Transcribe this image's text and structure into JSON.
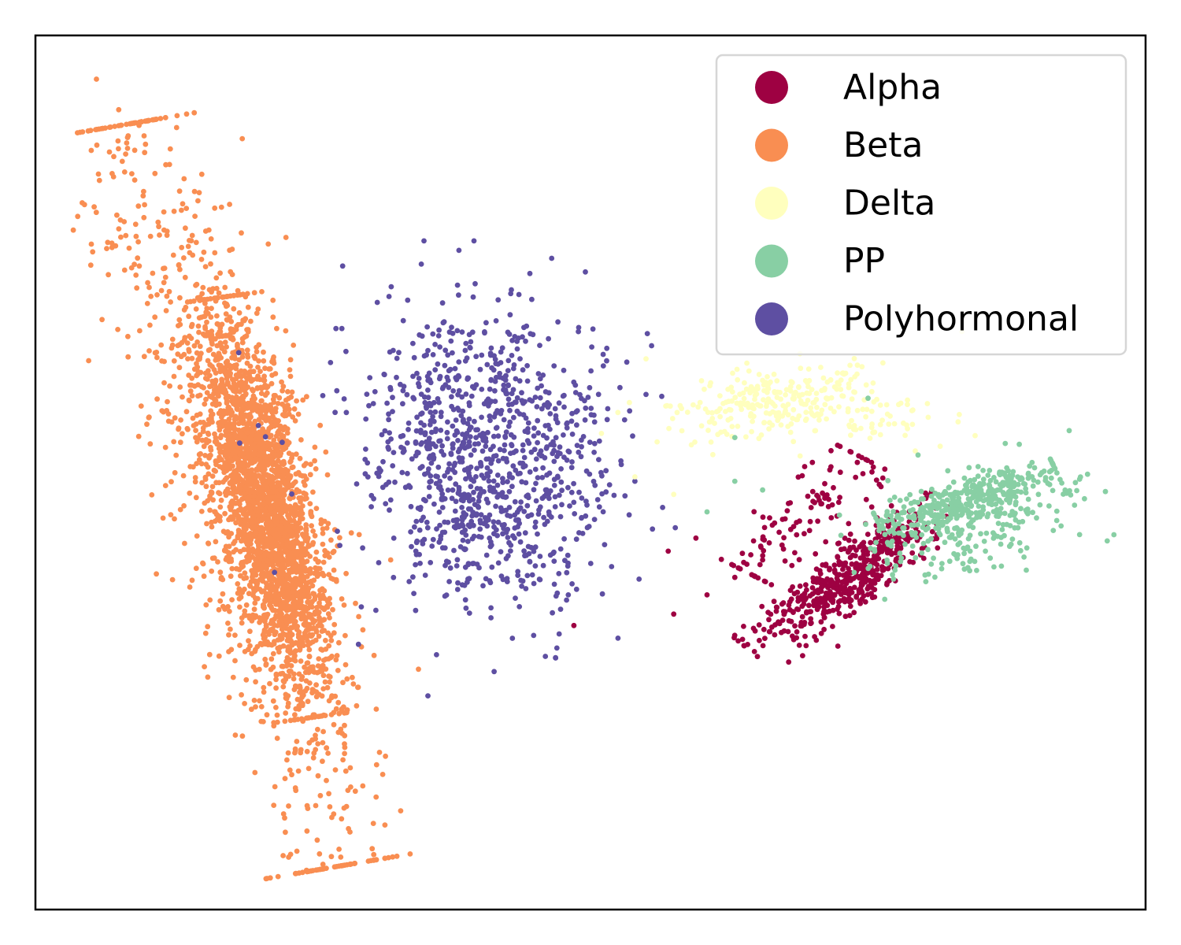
{
  "chart_data": {
    "type": "scatter",
    "title": "",
    "xlabel": "",
    "ylabel": "",
    "xlim": [
      0,
      100
    ],
    "ylim": [
      0,
      100
    ],
    "axis_ticks": "none",
    "grid": false,
    "legend": {
      "placement": "upper-right",
      "marker": "circle"
    },
    "series": [
      {
        "name": "Alpha",
        "color": "#9e0142",
        "clusters": [
          {
            "points": 520,
            "from": [
              64.5,
              29.5
            ],
            "to": [
              82.0,
              46.5
            ],
            "width": 1.6,
            "length_sd": 0.22
          },
          {
            "points": 110,
            "from": [
              65.0,
              38.0
            ],
            "to": [
              74.0,
              52.0
            ],
            "width": 1.8,
            "length_sd": 0.35
          }
        ],
        "outliers": [
          [
            48.5,
            32.5
          ],
          [
            57.5,
            33.8
          ],
          [
            60.5,
            36.0
          ],
          [
            63.0,
            38.0
          ],
          [
            57.0,
            41.0
          ],
          [
            59.5,
            42.5
          ],
          [
            65.5,
            40.0
          ],
          [
            66.0,
            34.0
          ]
        ]
      },
      {
        "name": "Beta",
        "color": "#f98e52",
        "clusters": [
          {
            "points": 2400,
            "from": [
              16.5,
              70.0
            ],
            "to": [
              25.0,
              22.0
            ],
            "width": 2.0,
            "length_sd": 0.22
          },
          {
            "points": 900,
            "from": [
              9.0,
              90.0
            ],
            "to": [
              27.5,
              5.0
            ],
            "width": 3.3,
            "length_sd": 0.3
          }
        ],
        "outliers": [
          [
            5.5,
            95.0
          ],
          [
            7.5,
            91.5
          ],
          [
            6.0,
            67.5
          ],
          [
            34.5,
            27.5
          ],
          [
            32.0,
            40.0
          ],
          [
            29.5,
            32.0
          ],
          [
            27.5,
            6.0
          ]
        ]
      },
      {
        "name": "Delta",
        "color": "#ffffbe",
        "clusters": [
          {
            "points": 260,
            "center": [
              67.0,
              58.0
            ],
            "sd": [
              4.8,
              2.0
            ],
            "corr": 0.35
          },
          {
            "points": 45,
            "center": [
              76.0,
              56.0
            ],
            "sd": [
              4.0,
              1.5
            ],
            "corr": 0.0
          }
        ],
        "outliers": [
          [
            56.0,
            53.5
          ],
          [
            54.0,
            49.5
          ],
          [
            55.0,
            63.0
          ],
          [
            60.0,
            60.5
          ],
          [
            53.5,
            58.0
          ],
          [
            57.5,
            47.5
          ],
          [
            79.0,
            55.5
          ],
          [
            81.5,
            53.0
          ]
        ]
      },
      {
        "name": "PP",
        "color": "#88cfa4",
        "clusters": [
          {
            "points": 330,
            "from": [
              76.0,
              44.0
            ],
            "to": [
              92.0,
              50.0
            ],
            "width": 1.3,
            "length_sd": 0.28
          },
          {
            "points": 240,
            "center": [
              84.0,
              44.0
            ],
            "sd": [
              4.5,
              3.2
            ],
            "corr": 0.4
          }
        ],
        "outliers": [
          [
            60.5,
            45.5
          ],
          [
            63.0,
            49.0
          ],
          [
            65.5,
            48.0
          ],
          [
            92.0,
            44.5
          ],
          [
            94.5,
            47.0
          ],
          [
            76.5,
            35.5
          ],
          [
            75.0,
            58.5
          ],
          [
            79.5,
            52.0
          ],
          [
            63.0,
            54.0
          ]
        ]
      },
      {
        "name": "Polyhormonal",
        "color": "#5e4fa2",
        "clusters": [
          {
            "points": 1050,
            "center": [
              40.5,
              51.5
            ],
            "sd": [
              5.6,
              8.2
            ],
            "corr": -0.1
          }
        ],
        "outliers": [
          [
            35.0,
            76.5
          ],
          [
            39.5,
            76.5
          ],
          [
            46.5,
            74.5
          ],
          [
            55.5,
            64.5
          ],
          [
            56.5,
            46.0
          ],
          [
            48.0,
            36.0
          ],
          [
            32.0,
            59.5
          ],
          [
            54.0,
            49.0
          ]
        ]
      }
    ]
  }
}
